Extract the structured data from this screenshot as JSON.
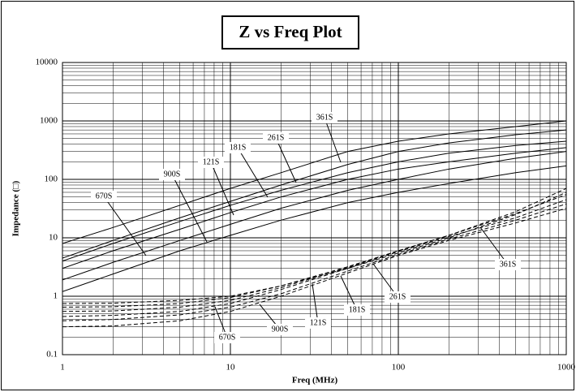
{
  "chart_data": {
    "type": "line",
    "title": "Z vs Freq Plot",
    "xlabel": "Freq (MHz)",
    "ylabel": "Impedance (□)",
    "log_x": true,
    "log_y": true,
    "grid": true,
    "x": [
      1,
      2,
      5,
      10,
      20,
      50,
      100,
      200,
      500,
      1000
    ],
    "xlim": [
      1,
      1000
    ],
    "xticks": [
      1,
      10,
      100,
      1000
    ],
    "ylim": [
      0.1,
      10000
    ],
    "yticks": [
      0.1,
      1,
      10,
      100,
      1000,
      10000
    ],
    "series": [
      {
        "name": "361S",
        "color": "#000000",
        "dashed": false,
        "values": [
          8,
          15,
          36,
          70,
          130,
          300,
          450,
          600,
          800,
          1000
        ]
      },
      {
        "name": "261S",
        "color": "#000000",
        "dashed": false,
        "values": [
          4.5,
          9,
          22,
          42,
          80,
          180,
          300,
          420,
          580,
          700
        ]
      },
      {
        "name": "181S",
        "color": "#000000",
        "dashed": false,
        "values": [
          4,
          8,
          19,
          36,
          65,
          130,
          200,
          280,
          380,
          450
        ]
      },
      {
        "name": "121S",
        "color": "#000000",
        "dashed": false,
        "values": [
          3,
          6,
          14,
          27,
          50,
          100,
          150,
          200,
          280,
          350
        ]
      },
      {
        "name": "900S",
        "color": "#000000",
        "dashed": false,
        "values": [
          1.9,
          3.8,
          9,
          17,
          32,
          65,
          100,
          150,
          230,
          300
        ]
      },
      {
        "name": "670S",
        "color": "#000000",
        "dashed": false,
        "values": [
          1.2,
          2.4,
          6,
          11,
          20,
          40,
          60,
          85,
          130,
          170
        ]
      },
      {
        "name": "361S",
        "color": "#000000",
        "dashed": true,
        "values": [
          0.75,
          0.76,
          0.85,
          1.0,
          1.5,
          3,
          5.5,
          10,
          25,
          60
        ]
      },
      {
        "name": "261S",
        "color": "#000000",
        "dashed": true,
        "values": [
          0.65,
          0.66,
          0.75,
          0.95,
          1.5,
          3.2,
          6,
          11,
          28,
          70
        ]
      },
      {
        "name": "181S",
        "color": "#000000",
        "dashed": true,
        "values": [
          0.55,
          0.56,
          0.65,
          0.85,
          1.4,
          3.1,
          6,
          11,
          26,
          55
        ]
      },
      {
        "name": "121S",
        "color": "#000000",
        "dashed": true,
        "values": [
          0.45,
          0.47,
          0.55,
          0.75,
          1.3,
          3.0,
          5.8,
          10.5,
          22,
          45
        ]
      },
      {
        "name": "900S",
        "color": "#000000",
        "dashed": true,
        "values": [
          0.38,
          0.4,
          0.48,
          0.65,
          1.1,
          2.7,
          5.2,
          9.5,
          20,
          38
        ]
      },
      {
        "name": "670S",
        "color": "#000000",
        "dashed": true,
        "values": [
          0.3,
          0.31,
          0.38,
          0.55,
          1.0,
          2.5,
          5,
          9,
          18,
          32
        ]
      }
    ]
  }
}
